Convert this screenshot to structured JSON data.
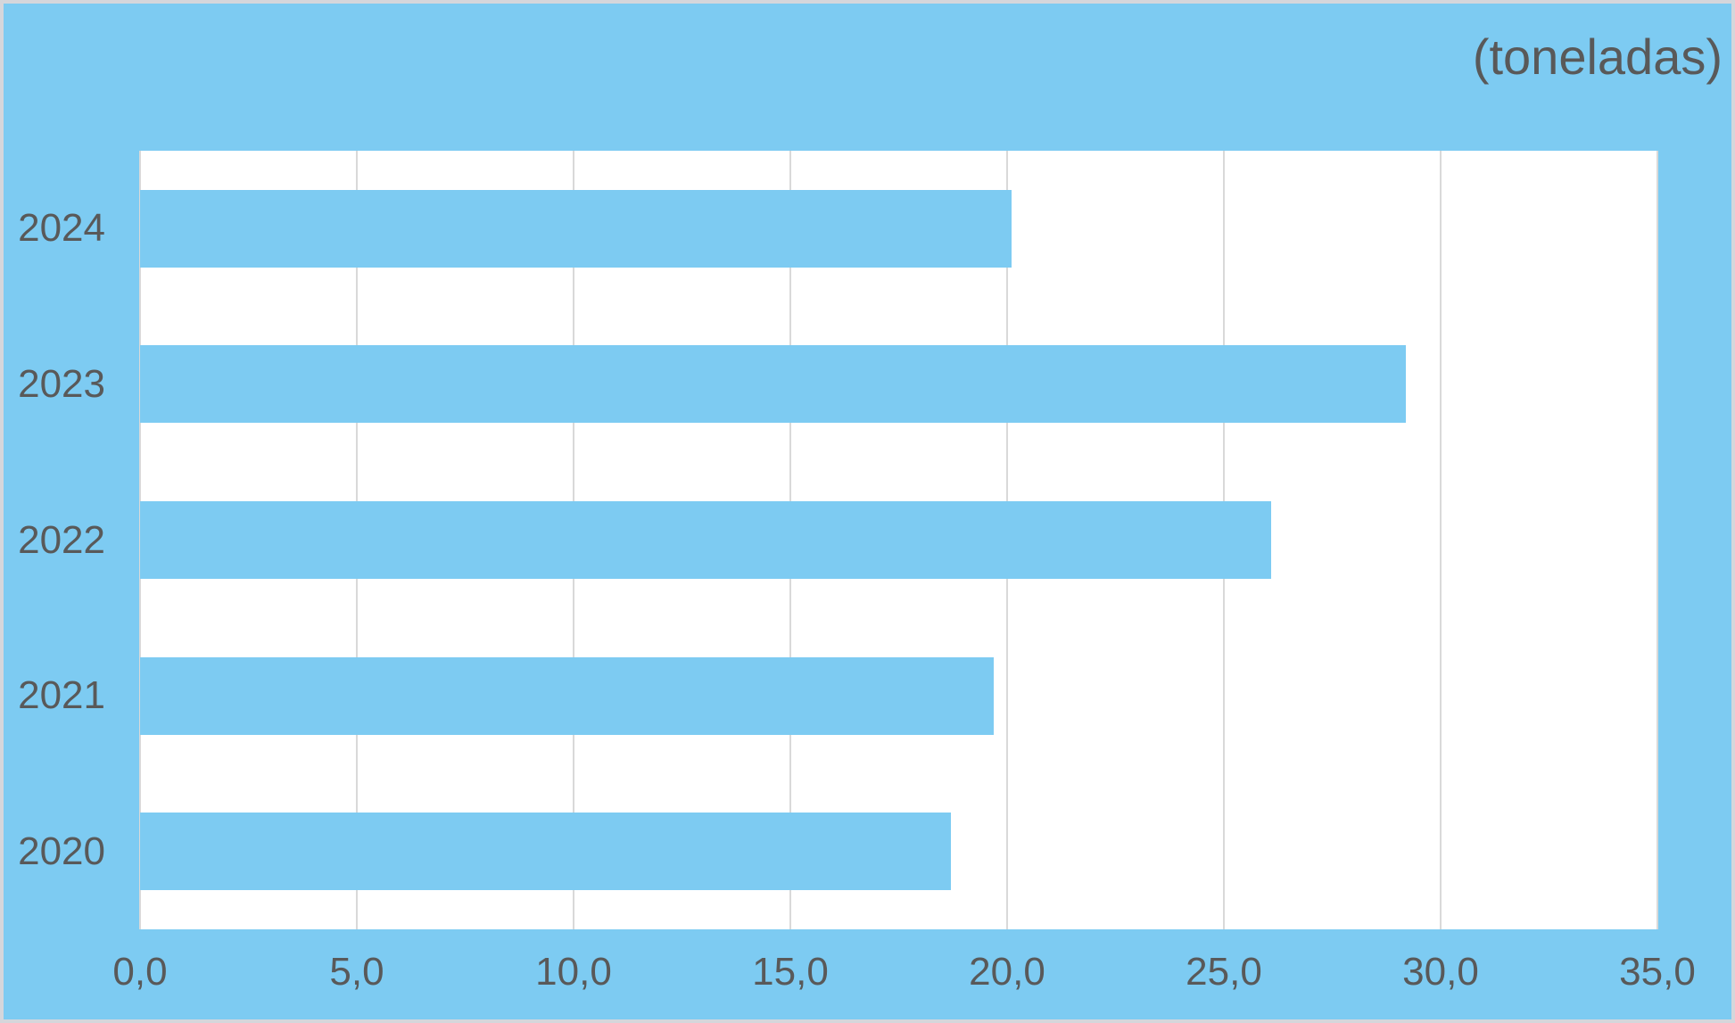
{
  "title": "(toneladas)",
  "colors": {
    "background": "#7DCBF2",
    "bar": "#7DCBF2",
    "plot_background": "#FFFFFF",
    "gridline": "#D9D9D9",
    "text": "#595959",
    "border": "#D5D6DB"
  },
  "chart_data": {
    "type": "bar",
    "orientation": "horizontal",
    "title": "(toneladas)",
    "categories": [
      "2024",
      "2023",
      "2022",
      "2021",
      "2020"
    ],
    "values": [
      20.1,
      29.2,
      26.1,
      19.7,
      18.7
    ],
    "x_tick_labels": [
      "0,0",
      "5,0",
      "10,0",
      "15,0",
      "20,0",
      "25,0",
      "30,0",
      "35,0"
    ],
    "x_tick_values": [
      0,
      5,
      10,
      15,
      20,
      25,
      30,
      35
    ],
    "xlim": [
      0,
      35
    ],
    "xlabel": "",
    "ylabel": "",
    "grid": true,
    "legend": false
  }
}
